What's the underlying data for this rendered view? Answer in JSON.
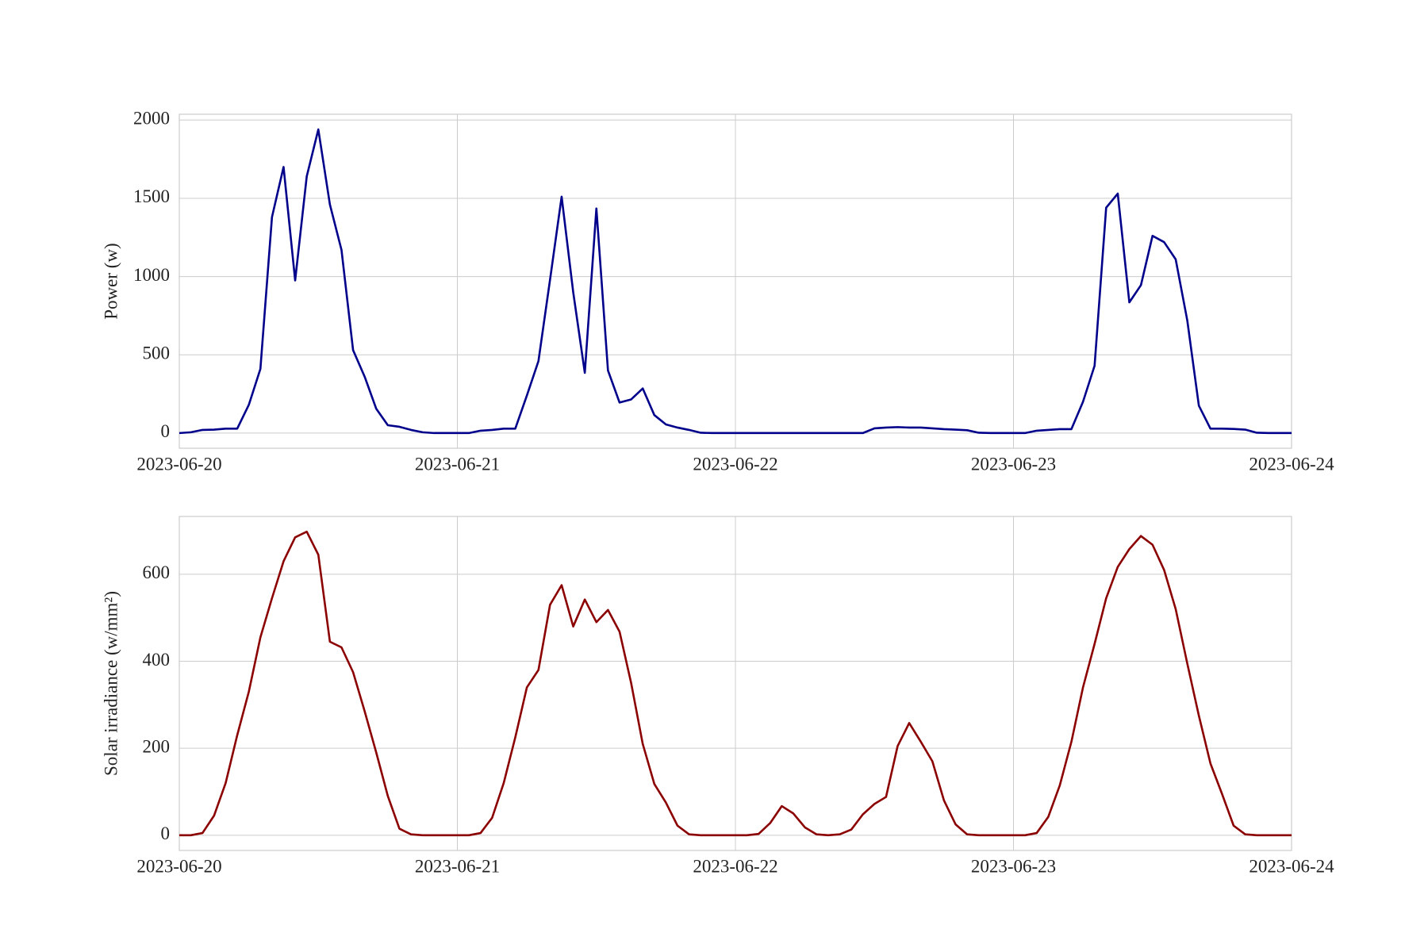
{
  "chart_data": [
    {
      "type": "line",
      "ylabel": "Power (w)",
      "color": "#00008b",
      "x": [
        0,
        1,
        2,
        3,
        4,
        5,
        6,
        7,
        8,
        9,
        10,
        11,
        12,
        13,
        14,
        15,
        16,
        17,
        18,
        19,
        20,
        21,
        22,
        23,
        24,
        25,
        26,
        27,
        28,
        29,
        30,
        31,
        32,
        33,
        34,
        35,
        36,
        37,
        38,
        39,
        40,
        41,
        42,
        43,
        44,
        45,
        46,
        47,
        48,
        49,
        50,
        51,
        52,
        53,
        54,
        55,
        56,
        57,
        58,
        59,
        60,
        61,
        62,
        63,
        64,
        65,
        66,
        67,
        68,
        69,
        70,
        71,
        72,
        73,
        74,
        75,
        76,
        77,
        78,
        79,
        80,
        81,
        82,
        83,
        84,
        85,
        86,
        87,
        88,
        89,
        90,
        91,
        92,
        93,
        94,
        95,
        96
      ],
      "values": [
        0,
        5,
        20,
        22,
        28,
        28,
        180,
        410,
        1380,
        1700,
        975,
        1640,
        1940,
        1460,
        1170,
        530,
        360,
        155,
        50,
        40,
        20,
        5,
        0,
        0,
        0,
        0,
        15,
        20,
        28,
        28,
        240,
        460,
        980,
        1510,
        900,
        385,
        1435,
        400,
        195,
        215,
        285,
        115,
        55,
        35,
        20,
        2,
        0,
        0,
        0,
        0,
        0,
        0,
        0,
        0,
        0,
        0,
        0,
        0,
        0,
        0,
        30,
        35,
        38,
        35,
        35,
        30,
        25,
        22,
        18,
        2,
        0,
        0,
        0,
        0,
        15,
        20,
        25,
        25,
        200,
        430,
        1440,
        1530,
        835,
        945,
        1260,
        1220,
        1110,
        720,
        175,
        28,
        28,
        26,
        22,
        2,
        0,
        0,
        0
      ],
      "xlim": [
        0,
        96
      ],
      "xticks": [
        {
          "value": 0,
          "label": "2023-06-20"
        },
        {
          "value": 24,
          "label": "2023-06-21"
        },
        {
          "value": 48,
          "label": "2023-06-22"
        },
        {
          "value": 72,
          "label": "2023-06-23"
        },
        {
          "value": 96,
          "label": "2023-06-24"
        }
      ],
      "ylim": [
        -97,
        2037
      ],
      "yticks": [
        0,
        500,
        1000,
        1500,
        2000
      ],
      "grid": true
    },
    {
      "type": "line",
      "ylabel": "Solar irradiance (w/mm²)",
      "color": "#8b0000",
      "x": [
        0,
        1,
        2,
        3,
        4,
        5,
        6,
        7,
        8,
        9,
        10,
        11,
        12,
        13,
        14,
        15,
        16,
        17,
        18,
        19,
        20,
        21,
        22,
        23,
        24,
        25,
        26,
        27,
        28,
        29,
        30,
        31,
        32,
        33,
        34,
        35,
        36,
        37,
        38,
        39,
        40,
        41,
        42,
        43,
        44,
        45,
        46,
        47,
        48,
        49,
        50,
        51,
        52,
        53,
        54,
        55,
        56,
        57,
        58,
        59,
        60,
        61,
        62,
        63,
        64,
        65,
        66,
        67,
        68,
        69,
        70,
        71,
        72,
        73,
        74,
        75,
        76,
        77,
        78,
        79,
        80,
        81,
        82,
        83,
        84,
        85,
        86,
        87,
        88,
        89,
        90,
        91,
        92,
        93,
        94,
        95,
        96
      ],
      "values": [
        0,
        0,
        5,
        45,
        120,
        230,
        330,
        455,
        545,
        630,
        685,
        698,
        645,
        445,
        432,
        375,
        285,
        190,
        90,
        15,
        2,
        0,
        0,
        0,
        0,
        0,
        5,
        40,
        120,
        225,
        340,
        380,
        530,
        575,
        480,
        542,
        490,
        518,
        468,
        350,
        210,
        118,
        75,
        22,
        2,
        0,
        0,
        0,
        0,
        0,
        3,
        28,
        67,
        50,
        18,
        2,
        0,
        2,
        13,
        48,
        72,
        88,
        205,
        258,
        215,
        170,
        80,
        25,
        2,
        0,
        0,
        0,
        0,
        0,
        5,
        42,
        115,
        215,
        340,
        440,
        545,
        617,
        658,
        688,
        668,
        610,
        520,
        395,
        275,
        165,
        95,
        22,
        2,
        0,
        0,
        0,
        0
      ],
      "xlim": [
        0,
        96
      ],
      "xticks": [
        {
          "value": 0,
          "label": "2023-06-20"
        },
        {
          "value": 24,
          "label": "2023-06-21"
        },
        {
          "value": 48,
          "label": "2023-06-22"
        },
        {
          "value": 72,
          "label": "2023-06-23"
        },
        {
          "value": 96,
          "label": "2023-06-24"
        }
      ],
      "ylim": [
        -35,
        733
      ],
      "yticks": [
        0,
        200,
        400,
        600
      ],
      "grid": true
    }
  ]
}
